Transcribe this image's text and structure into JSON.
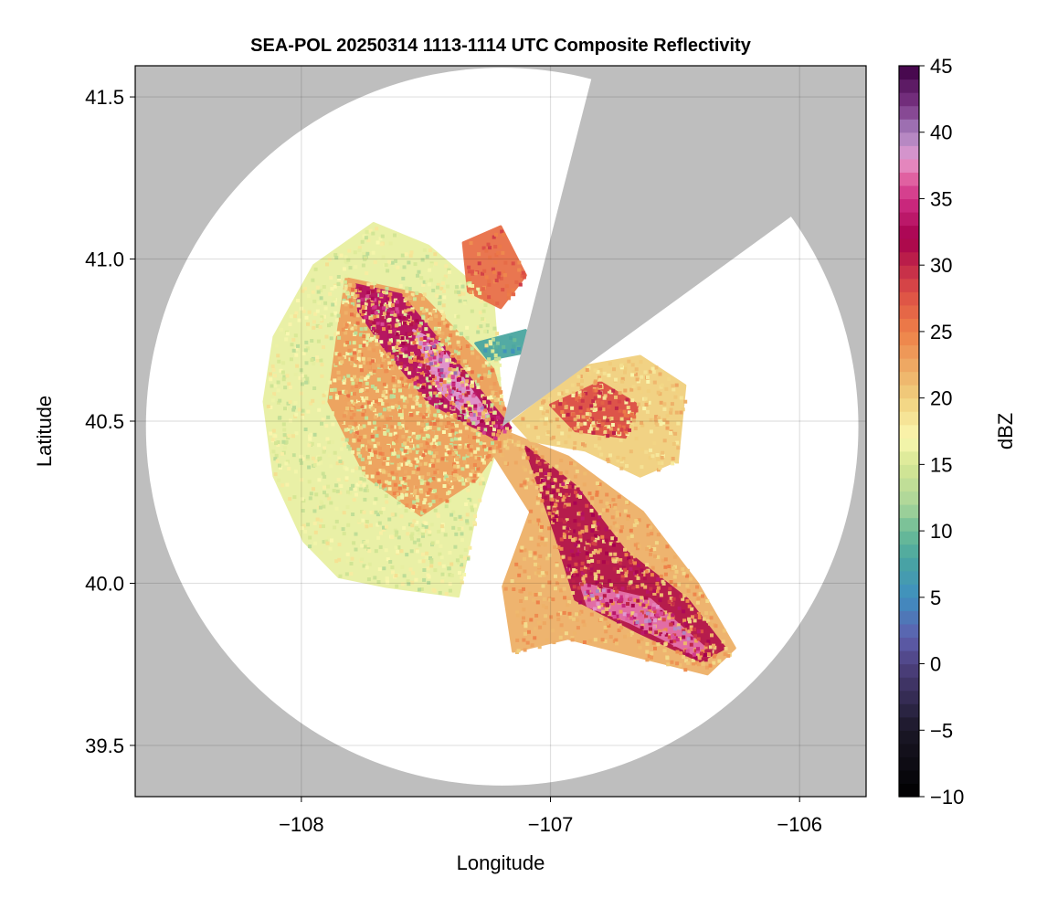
{
  "chart_data": {
    "type": "heatmap",
    "title": "SEA-POL 20250314 1113-1114 UTC Composite Reflectivity",
    "xlabel": "Longitude",
    "ylabel": "Latitude",
    "xlim": [
      -108.667,
      -105.733
    ],
    "ylim": [
      39.342,
      41.596
    ],
    "xticks": [
      -108,
      -107,
      -106
    ],
    "xtick_labels": [
      "−108",
      "−107",
      "−106"
    ],
    "yticks": [
      39.5,
      40.0,
      40.5,
      41.0,
      41.5
    ],
    "ytick_labels": [
      "39.5",
      "40.0",
      "40.5",
      "41.0",
      "41.5"
    ],
    "grid": true,
    "colorbar": {
      "label": "dBZ",
      "range": [
        -10,
        45
      ],
      "ticks": [
        -10,
        -5,
        0,
        5,
        10,
        15,
        20,
        25,
        30,
        35,
        40,
        45
      ],
      "tick_labels": [
        "−10",
        "−5",
        "0",
        "5",
        "10",
        "15",
        "20",
        "25",
        "30",
        "35",
        "40",
        "45"
      ],
      "stops": [
        [
          -10,
          "#000000"
        ],
        [
          -5,
          "#1b1727"
        ],
        [
          0,
          "#4e4180"
        ],
        [
          2,
          "#5e5fae"
        ],
        [
          5,
          "#3f8fc0"
        ],
        [
          8,
          "#4aa6a0"
        ],
        [
          10,
          "#6dbc97"
        ],
        [
          12,
          "#a9d59a"
        ],
        [
          15,
          "#d6e794"
        ],
        [
          17,
          "#faf8b0"
        ],
        [
          20,
          "#f1d07e"
        ],
        [
          22,
          "#eeb068"
        ],
        [
          25,
          "#ee8048"
        ],
        [
          28,
          "#dc4e46"
        ],
        [
          32,
          "#a6004d"
        ],
        [
          35,
          "#d02f85"
        ],
        [
          37,
          "#e572aa"
        ],
        [
          38,
          "#e39ad0"
        ],
        [
          40,
          "#a882bf"
        ],
        [
          42,
          "#7c3686"
        ],
        [
          45,
          "#3d0044"
        ]
      ]
    },
    "radar": {
      "center": [
        -107.194,
        40.483
      ],
      "range_deg": [
        1.43,
        1.107
      ],
      "blocked_sector_edges": [
        [
          -106.846,
          41.525
        ],
        [
          -106.059,
          41.117
        ]
      ],
      "nodata_color": "#bebebe"
    },
    "echo_regions": [
      {
        "name": "west-stratiform",
        "dbz": 16,
        "poly": [
          [
            -108.11,
            40.76
          ],
          [
            -107.95,
            40.98
          ],
          [
            -107.71,
            41.11
          ],
          [
            -107.49,
            41.04
          ],
          [
            -107.23,
            40.87
          ],
          [
            -107.19,
            40.48
          ],
          [
            -107.3,
            40.22
          ],
          [
            -107.37,
            39.96
          ],
          [
            -107.66,
            39.99
          ],
          [
            -107.85,
            40.02
          ],
          [
            -107.99,
            40.13
          ],
          [
            -108.11,
            40.33
          ],
          [
            -108.15,
            40.56
          ]
        ]
      },
      {
        "name": "west-band",
        "dbz": 23,
        "poly": [
          [
            -107.82,
            40.94
          ],
          [
            -107.52,
            40.89
          ],
          [
            -107.23,
            40.66
          ],
          [
            -107.16,
            40.47
          ],
          [
            -107.3,
            40.32
          ],
          [
            -107.52,
            40.21
          ],
          [
            -107.74,
            40.33
          ],
          [
            -107.89,
            40.56
          ],
          [
            -107.85,
            40.79
          ]
        ]
      },
      {
        "name": "west-core",
        "dbz": 33,
        "poly": [
          [
            -107.78,
            40.92
          ],
          [
            -107.6,
            40.89
          ],
          [
            -107.3,
            40.61
          ],
          [
            -107.16,
            40.48
          ],
          [
            -107.23,
            40.45
          ],
          [
            -107.49,
            40.56
          ],
          [
            -107.67,
            40.73
          ],
          [
            -107.77,
            40.84
          ]
        ]
      },
      {
        "name": "west-core-peak",
        "dbz": 38,
        "poly": [
          [
            -107.55,
            40.78
          ],
          [
            -107.45,
            40.74
          ],
          [
            -107.25,
            40.52
          ],
          [
            -107.3,
            40.49
          ],
          [
            -107.45,
            40.6
          ]
        ]
      },
      {
        "name": "southeast",
        "dbz": 22,
        "poly": [
          [
            -107.19,
            40.47
          ],
          [
            -106.93,
            40.39
          ],
          [
            -106.63,
            40.22
          ],
          [
            -106.41,
            40.0
          ],
          [
            -106.26,
            39.8
          ],
          [
            -106.37,
            39.72
          ],
          [
            -106.63,
            39.77
          ],
          [
            -106.93,
            39.83
          ],
          [
            -107.15,
            39.79
          ],
          [
            -107.19,
            39.99
          ],
          [
            -107.08,
            40.22
          ],
          [
            -107.23,
            40.4
          ]
        ]
      },
      {
        "name": "southeast-core",
        "dbz": 31,
        "poly": [
          [
            -107.1,
            40.42
          ],
          [
            -106.9,
            40.3
          ],
          [
            -106.7,
            40.1
          ],
          [
            -106.45,
            39.95
          ],
          [
            -106.3,
            39.8
          ],
          [
            -106.4,
            39.76
          ],
          [
            -106.65,
            39.85
          ],
          [
            -106.9,
            39.95
          ],
          [
            -106.98,
            40.15
          ]
        ]
      },
      {
        "name": "southeast-peak",
        "dbz": 37,
        "poly": [
          [
            -106.88,
            40.0
          ],
          [
            -106.6,
            39.95
          ],
          [
            -106.38,
            39.8
          ],
          [
            -106.42,
            39.78
          ],
          [
            -106.68,
            39.88
          ],
          [
            -106.85,
            39.93
          ]
        ]
      },
      {
        "name": "northeast",
        "dbz": 20,
        "poly": [
          [
            -107.15,
            40.5
          ],
          [
            -106.86,
            40.67
          ],
          [
            -106.64,
            40.7
          ],
          [
            -106.46,
            40.61
          ],
          [
            -106.49,
            40.38
          ],
          [
            -106.64,
            40.33
          ],
          [
            -106.86,
            40.41
          ],
          [
            -107.08,
            40.44
          ]
        ]
      },
      {
        "name": "northeast-cells",
        "dbz": 28,
        "poly": [
          [
            -107.0,
            40.55
          ],
          [
            -106.8,
            40.62
          ],
          [
            -106.65,
            40.55
          ],
          [
            -106.7,
            40.45
          ],
          [
            -106.9,
            40.47
          ]
        ]
      },
      {
        "name": "north-teal",
        "dbz": 8,
        "poly": [
          [
            -107.3,
            40.74
          ],
          [
            -107.1,
            40.78
          ],
          [
            -107.05,
            40.72
          ],
          [
            -107.25,
            40.69
          ]
        ]
      },
      {
        "name": "north-cells",
        "dbz": 26,
        "poly": [
          [
            -107.35,
            41.05
          ],
          [
            -107.2,
            41.1
          ],
          [
            -107.1,
            40.95
          ],
          [
            -107.2,
            40.85
          ],
          [
            -107.33,
            40.9
          ]
        ]
      }
    ]
  }
}
